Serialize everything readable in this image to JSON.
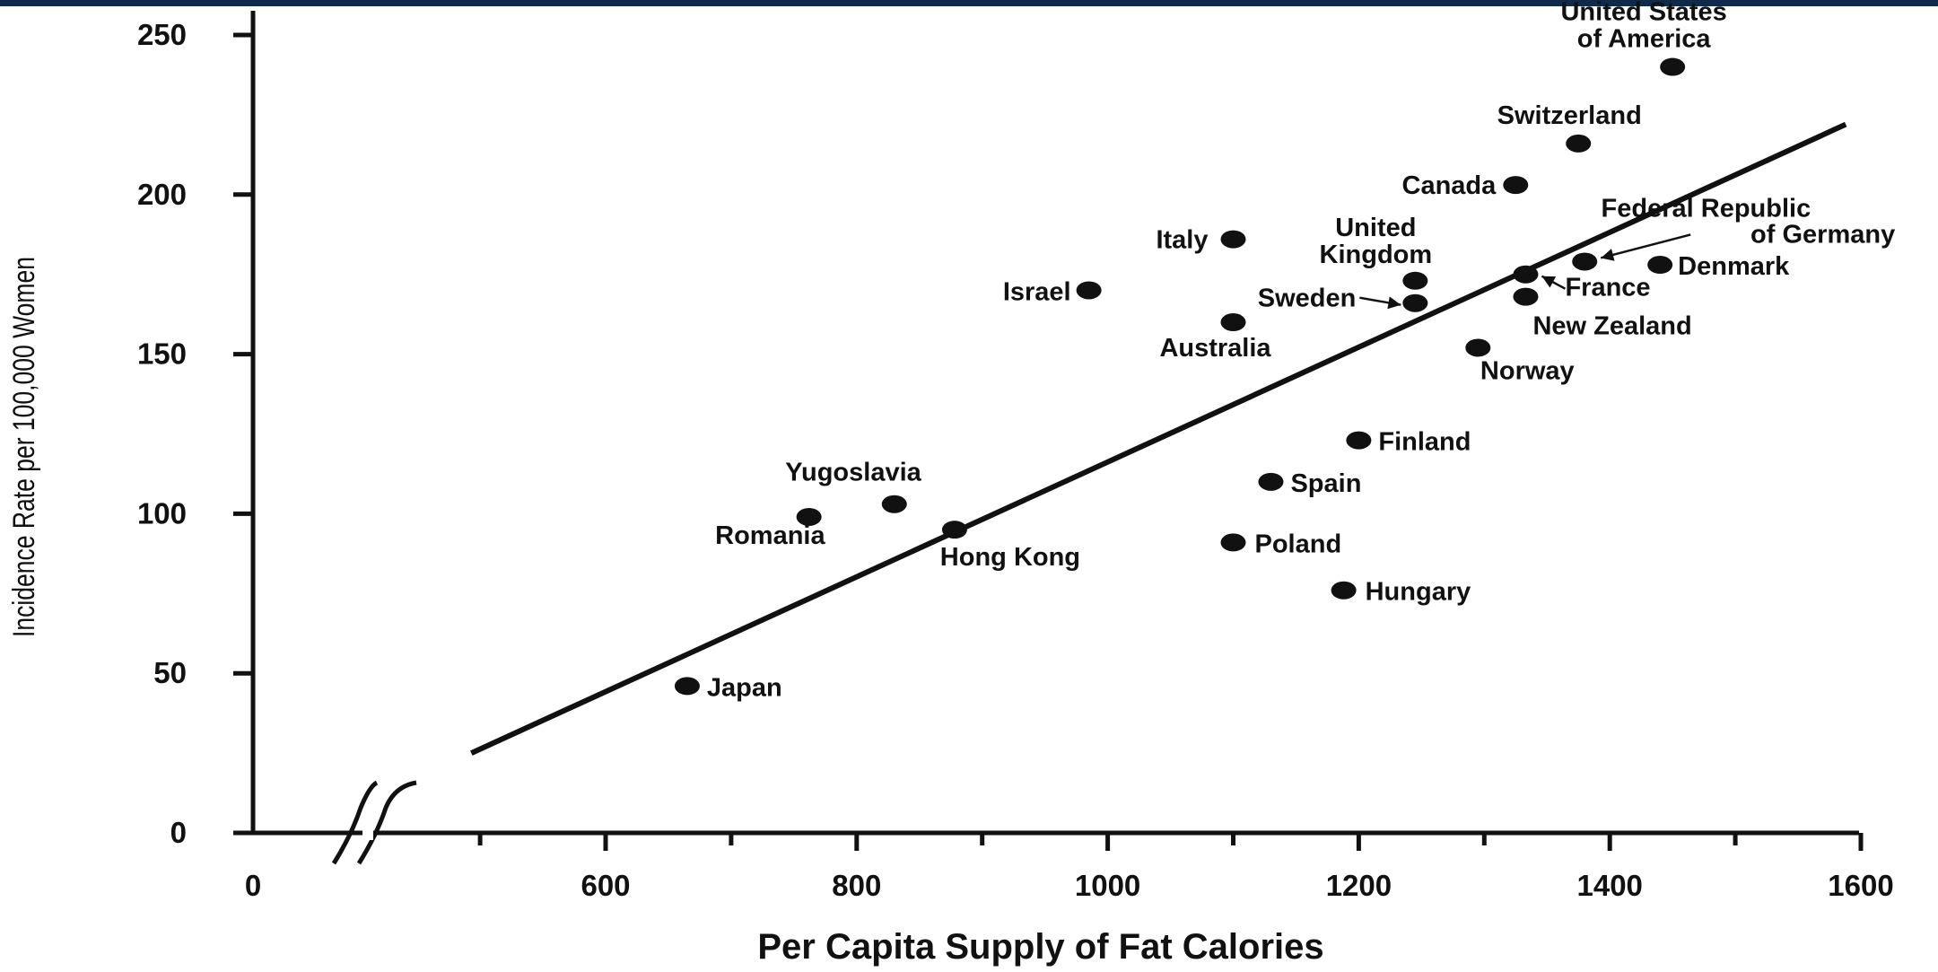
{
  "chart_data": {
    "type": "scatter",
    "title": "",
    "xlabel": "Per Capita Supply of Fat Calories",
    "ylabel": "Incidence Rate per 100,000 Women",
    "xlim": [
      0,
      1600
    ],
    "ylim": [
      0,
      250
    ],
    "x_axis_break": true,
    "x_tick_labels": [
      "0",
      "600",
      "800",
      "1000",
      "1200",
      "1400",
      "1600"
    ],
    "y_tick_labels": [
      "0",
      "50",
      "100",
      "150",
      "200",
      "250"
    ],
    "series": [
      {
        "points": [
          {
            "label": "Japan",
            "x": 665,
            "y": 46
          },
          {
            "label": "Romania",
            "x": 762,
            "y": 99
          },
          {
            "label": "Yugoslavia",
            "x": 830,
            "y": 103
          },
          {
            "label": "Hong Kong",
            "x": 878,
            "y": 95
          },
          {
            "label": "Israel",
            "x": 985,
            "y": 170
          },
          {
            "label": "Italy",
            "x": 1100,
            "y": 186
          },
          {
            "label": "Australia",
            "x": 1100,
            "y": 160
          },
          {
            "label": "Poland",
            "x": 1100,
            "y": 91
          },
          {
            "label": "Spain",
            "x": 1130,
            "y": 110
          },
          {
            "label": "Finland",
            "x": 1200,
            "y": 123
          },
          {
            "label": "Hungary",
            "x": 1188,
            "y": 76
          },
          {
            "label": "United Kingdom",
            "x": 1245,
            "y": 173
          },
          {
            "label": "Sweden",
            "x": 1245,
            "y": 166
          },
          {
            "label": "Canada",
            "x": 1325,
            "y": 203
          },
          {
            "label": "Norway",
            "x": 1295,
            "y": 152
          },
          {
            "label": "France",
            "x": 1333,
            "y": 175
          },
          {
            "label": "New Zealand",
            "x": 1333,
            "y": 168
          },
          {
            "label": "Switzerland",
            "x": 1375,
            "y": 216
          },
          {
            "label": "Federal Republic of Germany",
            "x": 1380,
            "y": 179
          },
          {
            "label": "Denmark",
            "x": 1440,
            "y": 178
          },
          {
            "label": "United States of America",
            "x": 1450,
            "y": 240
          }
        ]
      }
    ],
    "trendline": {
      "x": [
        493,
        1588
      ],
      "y": [
        25,
        222
      ]
    },
    "grid": false,
    "legend": "none"
  }
}
